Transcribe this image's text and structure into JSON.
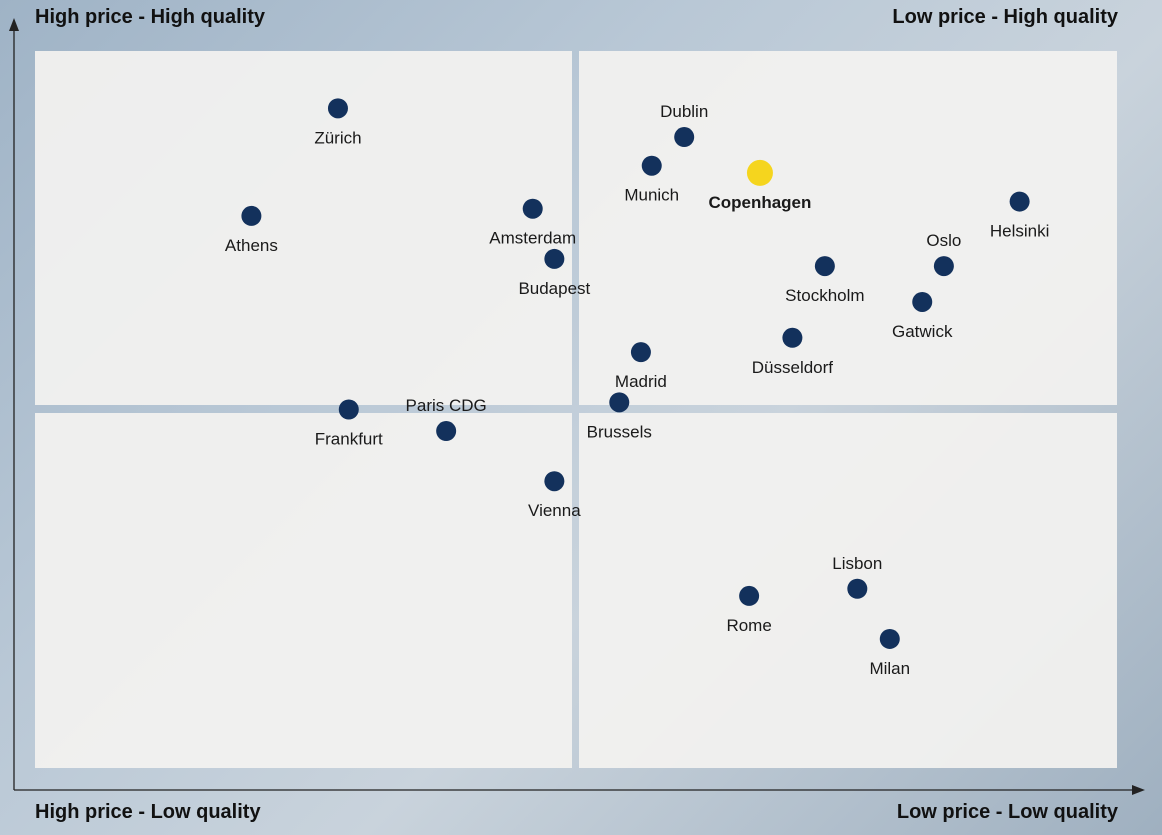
{
  "quadrant_labels": {
    "top_left": "High price - High quality",
    "top_right": "Low price - High quality",
    "bottom_left": "High price - Low quality",
    "bottom_right": "Low price - Low quality"
  },
  "colors": {
    "point": "#13315c",
    "highlight": "#f5d51e",
    "panel": "#f3f2f0",
    "axis": "#222222"
  },
  "chart_data": {
    "type": "scatter",
    "title": "",
    "xlabel": "",
    "ylabel": "",
    "xlim": [
      0,
      100
    ],
    "ylim": [
      0,
      100
    ],
    "grid": false,
    "quadrant_split": {
      "x": 50,
      "y": 50
    },
    "points": [
      {
        "label": "Zürich",
        "x": 28,
        "y": 92,
        "label_pos": "below"
      },
      {
        "label": "Dublin",
        "x": 60,
        "y": 88,
        "label_pos": "above"
      },
      {
        "label": "Munich",
        "x": 57,
        "y": 84,
        "label_pos": "below"
      },
      {
        "label": "Copenhagen",
        "x": 67,
        "y": 83,
        "label_pos": "below",
        "highlight": true
      },
      {
        "label": "Helsinki",
        "x": 91,
        "y": 79,
        "label_pos": "below"
      },
      {
        "label": "Athens",
        "x": 20,
        "y": 77,
        "label_pos": "below"
      },
      {
        "label": "Amsterdam",
        "x": 46,
        "y": 78,
        "label_pos": "below"
      },
      {
        "label": "Budapest",
        "x": 48,
        "y": 71,
        "label_pos": "below"
      },
      {
        "label": "Stockholm",
        "x": 73,
        "y": 70,
        "label_pos": "below"
      },
      {
        "label": "Oslo",
        "x": 84,
        "y": 70,
        "label_pos": "above"
      },
      {
        "label": "Gatwick",
        "x": 82,
        "y": 65,
        "label_pos": "below"
      },
      {
        "label": "Düsseldorf",
        "x": 70,
        "y": 60,
        "label_pos": "below"
      },
      {
        "label": "Madrid",
        "x": 56,
        "y": 58,
        "label_pos": "below"
      },
      {
        "label": "Brussels",
        "x": 54,
        "y": 51,
        "label_pos": "below"
      },
      {
        "label": "Frankfurt",
        "x": 29,
        "y": 50,
        "label_pos": "below"
      },
      {
        "label": "Paris CDG",
        "x": 38,
        "y": 47,
        "label_pos": "above"
      },
      {
        "label": "Vienna",
        "x": 48,
        "y": 40,
        "label_pos": "below"
      },
      {
        "label": "Rome",
        "x": 66,
        "y": 24,
        "label_pos": "below"
      },
      {
        "label": "Lisbon",
        "x": 76,
        "y": 25,
        "label_pos": "above"
      },
      {
        "label": "Milan",
        "x": 79,
        "y": 18,
        "label_pos": "below"
      }
    ]
  }
}
